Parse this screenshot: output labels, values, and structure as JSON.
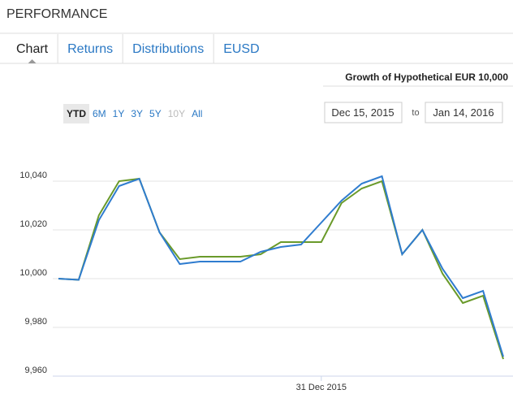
{
  "header": {
    "title": "PERFORMANCE"
  },
  "tabs": [
    "Chart",
    "Returns",
    "Distributions",
    "EUSD"
  ],
  "active_tab": 0,
  "ranges": [
    "YTD",
    "6M",
    "1Y",
    "3Y",
    "5Y",
    "10Y",
    "All"
  ],
  "active_range": 0,
  "disabled_range": 5,
  "date_from": "Dec 15, 2015",
  "date_sep": "to",
  "date_to": "Jan 14, 2016",
  "chart_data": {
    "type": "line",
    "title": "Growth of Hypothetical EUR 10,000",
    "categories": [
      null,
      null,
      null,
      null,
      null,
      null,
      null,
      null,
      null,
      null,
      null,
      null,
      null,
      "31 Dec 2015",
      null,
      null,
      null,
      null,
      null,
      null,
      null,
      null,
      null
    ],
    "series": [
      {
        "color": "#6a9a2a",
        "values": [
          10000,
          9999.5,
          10026,
          10040,
          10041,
          10019,
          10008,
          10009,
          10009,
          10009,
          10010,
          10015,
          10015,
          10015,
          10031,
          10037,
          10040,
          10010,
          10020,
          10002,
          9990,
          9993,
          9967
        ]
      },
      {
        "color": "#2f7ccf",
        "values": [
          10000,
          9999.5,
          10024,
          10038,
          10041,
          10019,
          10006,
          10007,
          10007,
          10007,
          10011,
          10013,
          10014,
          10023,
          10032,
          10039,
          10042,
          10010,
          10020,
          10004,
          9992,
          9995,
          9968
        ]
      }
    ],
    "ylim": [
      9960,
      10060
    ],
    "yticks": [
      {
        "value": 9960,
        "label": "9,960"
      },
      {
        "value": 9980,
        "label": "9,980"
      },
      {
        "value": 10000,
        "label": "10,000"
      },
      {
        "value": 10020,
        "label": "10,020"
      },
      {
        "value": 10040,
        "label": "10,040"
      }
    ],
    "grid": true
  }
}
